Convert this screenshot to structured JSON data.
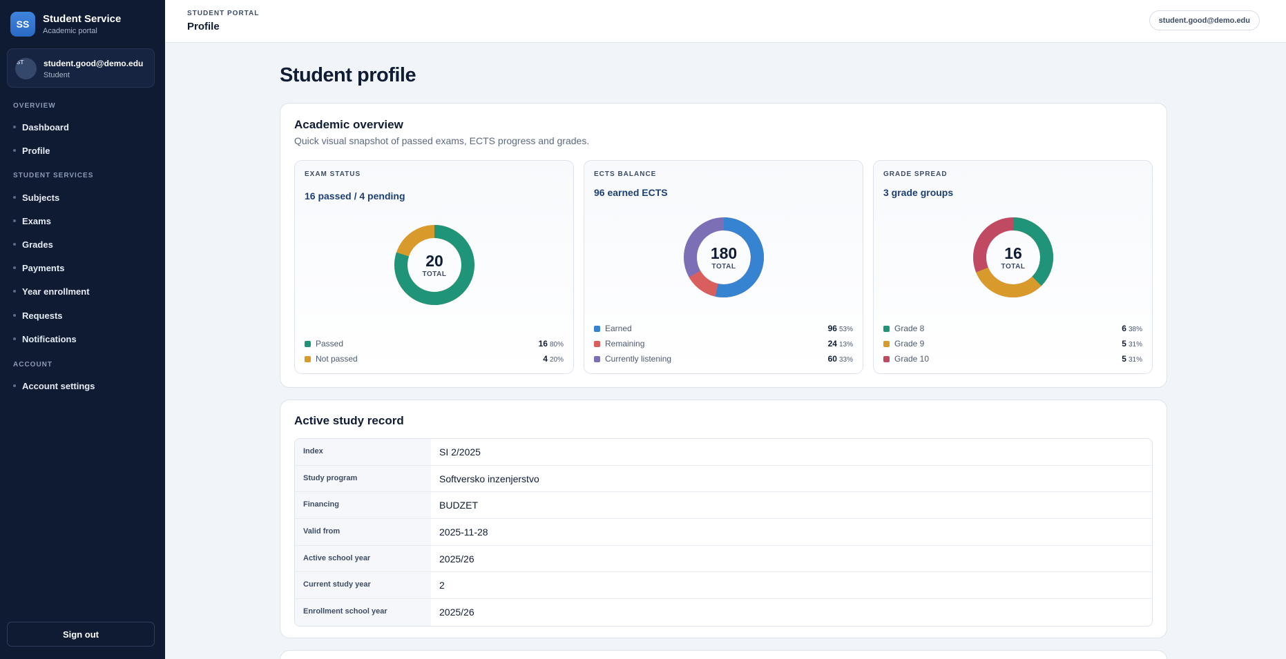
{
  "sidebar": {
    "brand": {
      "logo": "SS",
      "title": "Student Service",
      "subtitle": "Academic portal"
    },
    "user": {
      "avatar_text": "ST",
      "email": "student.good@demo.edu",
      "role": "Student"
    },
    "sections": {
      "overview": "OVERVIEW",
      "student_services": "STUDENT SERVICES",
      "account": "ACCOUNT"
    },
    "items": {
      "dashboard": "Dashboard",
      "profile": "Profile",
      "subjects": "Subjects",
      "exams": "Exams",
      "grades": "Grades",
      "payments": "Payments",
      "year_enrollment": "Year enrollment",
      "requests": "Requests",
      "notifications": "Notifications",
      "account_settings": "Account settings"
    },
    "sign_out": "Sign out"
  },
  "header": {
    "portal": "STUDENT PORTAL",
    "title": "Profile",
    "user_pill": "student.good@demo.edu"
  },
  "page_title": "Student profile",
  "overview": {
    "title": "Academic overview",
    "subtitle": "Quick visual snapshot of passed exams, ECTS progress and grades.",
    "exam_status": {
      "label": "EXAM STATUS",
      "headline": "16 passed / 4 pending",
      "total": "20",
      "total_label": "TOTAL",
      "legend": [
        {
          "name": "Passed",
          "value": "16",
          "pct": "80%",
          "color": "#1f9479"
        },
        {
          "name": "Not passed",
          "value": "4",
          "pct": "20%",
          "color": "#d89a2b"
        }
      ]
    },
    "ects_balance": {
      "label": "ECTS BALANCE",
      "headline": "96 earned ECTS",
      "total": "180",
      "total_label": "TOTAL",
      "legend": [
        {
          "name": "Earned",
          "value": "96",
          "pct": "53%",
          "color": "#3683d2"
        },
        {
          "name": "Remaining",
          "value": "24",
          "pct": "13%",
          "color": "#d95f5f"
        },
        {
          "name": "Currently listening",
          "value": "60",
          "pct": "33%",
          "color": "#7d6fb5"
        }
      ]
    },
    "grade_spread": {
      "label": "GRADE SPREAD",
      "headline": "3 grade groups",
      "total": "16",
      "total_label": "TOTAL",
      "legend": [
        {
          "name": "Grade 8",
          "value": "6",
          "pct": "38%",
          "color": "#1f9479"
        },
        {
          "name": "Grade 9",
          "value": "5",
          "pct": "31%",
          "color": "#d89a2b"
        },
        {
          "name": "Grade 10",
          "value": "5",
          "pct": "31%",
          "color": "#c04a62"
        }
      ]
    }
  },
  "record": {
    "title": "Active study record",
    "rows": [
      {
        "key": "Index",
        "value": "SI 2/2025"
      },
      {
        "key": "Study program",
        "value": "Softversko inzenjerstvo"
      },
      {
        "key": "Financing",
        "value": "BUDZET"
      },
      {
        "key": "Valid from",
        "value": "2025-11-28"
      },
      {
        "key": "Active school year",
        "value": "2025/26"
      },
      {
        "key": "Current study year",
        "value": "2"
      },
      {
        "key": "Enrollment school year",
        "value": "2025/26"
      }
    ]
  }
}
